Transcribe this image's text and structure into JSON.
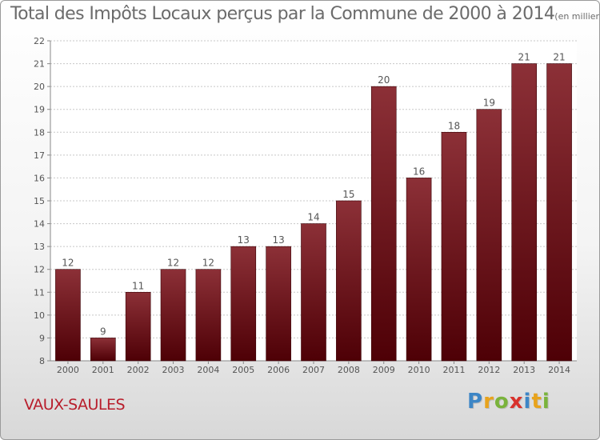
{
  "header": {
    "title": "Total des Impôts Locaux perçus par la Commune de 2000 à 2014",
    "subtitle": "(en milliers d'€)"
  },
  "footer": {
    "commune": "VAUX-SAULES",
    "logo_letters": [
      "P",
      "r",
      "o",
      "x",
      "i",
      "t",
      "i"
    ],
    "logo_colors": [
      "#3d86c6",
      "#e8a31c",
      "#7ab33c",
      "#d8322c",
      "#3d86c6",
      "#e8a31c",
      "#7ab33c"
    ]
  },
  "colors": {
    "bar_top": "#8c3037",
    "bar_bottom": "#4e0006",
    "commune_text": "#b81d2b"
  },
  "chart_data": {
    "type": "bar",
    "title": "Total des Impôts Locaux perçus par la Commune de 2000 à 2014",
    "xlabel": "",
    "ylabel": "",
    "ylim": [
      8,
      22
    ],
    "yticks": [
      8,
      9,
      10,
      11,
      12,
      13,
      14,
      15,
      16,
      17,
      18,
      19,
      20,
      21,
      22
    ],
    "grid": true,
    "categories": [
      "2000",
      "2001",
      "2002",
      "2003",
      "2004",
      "2005",
      "2006",
      "2007",
      "2008",
      "2009",
      "2010",
      "2011",
      "2012",
      "2013",
      "2014"
    ],
    "values": [
      12,
      9,
      11,
      12,
      12,
      13,
      13,
      14,
      15,
      20,
      16,
      18,
      19,
      21,
      21
    ],
    "data_labels": [
      "12",
      "9",
      "11",
      "12",
      "12",
      "13",
      "13",
      "14",
      "15",
      "20",
      "16",
      "18",
      "19",
      "21",
      "21"
    ]
  }
}
